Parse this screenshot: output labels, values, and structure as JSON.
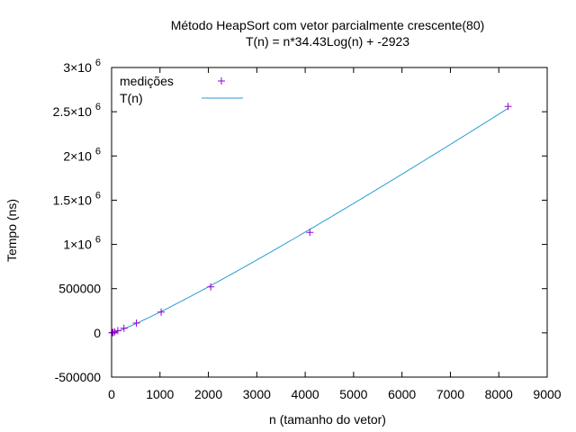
{
  "chart_data": {
    "type": "scatter",
    "title": "Método HeapSort com vetor parcialmente crescente(80)",
    "subtitle": "T(n) = n*34.43Log(n) + -2923",
    "xlabel": "n (tamanho do vetor)",
    "ylabel": "Tempo (ns)",
    "xlim": [
      0,
      9000
    ],
    "ylim": [
      -500000,
      3000000
    ],
    "x_ticks": [
      {
        "value": 0,
        "label": "0"
      },
      {
        "value": 1000,
        "label": "1000"
      },
      {
        "value": 2000,
        "label": "2000"
      },
      {
        "value": 3000,
        "label": "3000"
      },
      {
        "value": 4000,
        "label": "4000"
      },
      {
        "value": 5000,
        "label": "5000"
      },
      {
        "value": 6000,
        "label": "6000"
      },
      {
        "value": 7000,
        "label": "7000"
      },
      {
        "value": 8000,
        "label": "8000"
      },
      {
        "value": 9000,
        "label": "9000"
      }
    ],
    "y_ticks": [
      {
        "value": -500000,
        "label": "-500000",
        "mant": "",
        "exp": ""
      },
      {
        "value": 0,
        "label": "0",
        "mant": "",
        "exp": ""
      },
      {
        "value": 500000,
        "label": "500000",
        "mant": "",
        "exp": ""
      },
      {
        "value": 1000000,
        "label": "",
        "mant": "1×10",
        "exp": "6"
      },
      {
        "value": 1500000,
        "label": "",
        "mant": "1.5×10",
        "exp": "6"
      },
      {
        "value": 2000000,
        "label": "",
        "mant": "2×10",
        "exp": "6"
      },
      {
        "value": 2500000,
        "label": "",
        "mant": "2.5×10",
        "exp": "6"
      },
      {
        "value": 3000000,
        "label": "",
        "mant": "3×10",
        "exp": "6"
      }
    ],
    "grid": false,
    "legend_position": "top-left",
    "series": [
      {
        "name": "medições",
        "type": "scatter",
        "marker": "plus",
        "color": "#9400d3",
        "x": [
          8,
          16,
          32,
          64,
          128,
          256,
          512,
          1024,
          2048,
          4096,
          8192
        ],
        "y": [
          1000,
          2500,
          5000,
          11000,
          25000,
          52000,
          110000,
          235000,
          520000,
          1135000,
          2560000
        ]
      },
      {
        "name": "T(n)",
        "type": "line",
        "color": "#2a9bd6",
        "formula": "n*34.43Log(n) + -2923",
        "coef": 34.43,
        "intercept": -2923
      }
    ]
  }
}
